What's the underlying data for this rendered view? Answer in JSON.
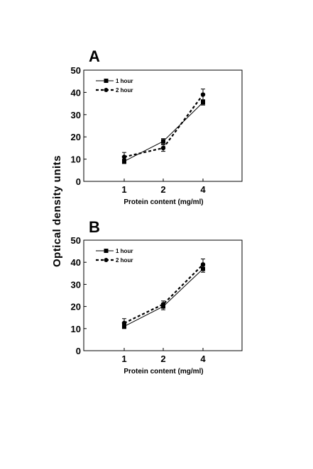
{
  "shared": {
    "ylabel": "Optical density units"
  },
  "chart_data": [
    {
      "type": "line",
      "panel": "A",
      "x": [
        "1",
        "2",
        "4"
      ],
      "xlabel": "Protein content (mg/ml)",
      "ylim": [
        0,
        50
      ],
      "yticks": [
        "0",
        "10",
        "20",
        "30",
        "40",
        "50"
      ],
      "legend_position": "top-left",
      "series": [
        {
          "name": "1 hour",
          "values": [
            9,
            18,
            35.5
          ],
          "errors": [
            1,
            1.2,
            1.2
          ],
          "marker": "square",
          "line": "solid"
        },
        {
          "name": "2 hour",
          "values": [
            11,
            15,
            39
          ],
          "errors": [
            2,
            1.5,
            2.5
          ],
          "marker": "circle",
          "line": "dashed"
        }
      ]
    },
    {
      "type": "line",
      "panel": "B",
      "x": [
        "1",
        "2",
        "4"
      ],
      "xlabel": "Protein content (mg/ml)",
      "ylim": [
        0,
        50
      ],
      "yticks": [
        "0",
        "10",
        "20",
        "30",
        "40",
        "50"
      ],
      "legend_position": "top-left",
      "series": [
        {
          "name": "1 hour",
          "values": [
            11,
            20,
            37
          ],
          "errors": [
            1,
            1.5,
            1.5
          ],
          "marker": "square",
          "line": "solid"
        },
        {
          "name": "2 hour",
          "values": [
            12.5,
            21,
            39
          ],
          "errors": [
            2,
            1.5,
            2.5
          ],
          "marker": "circle",
          "line": "dashed"
        }
      ]
    }
  ]
}
